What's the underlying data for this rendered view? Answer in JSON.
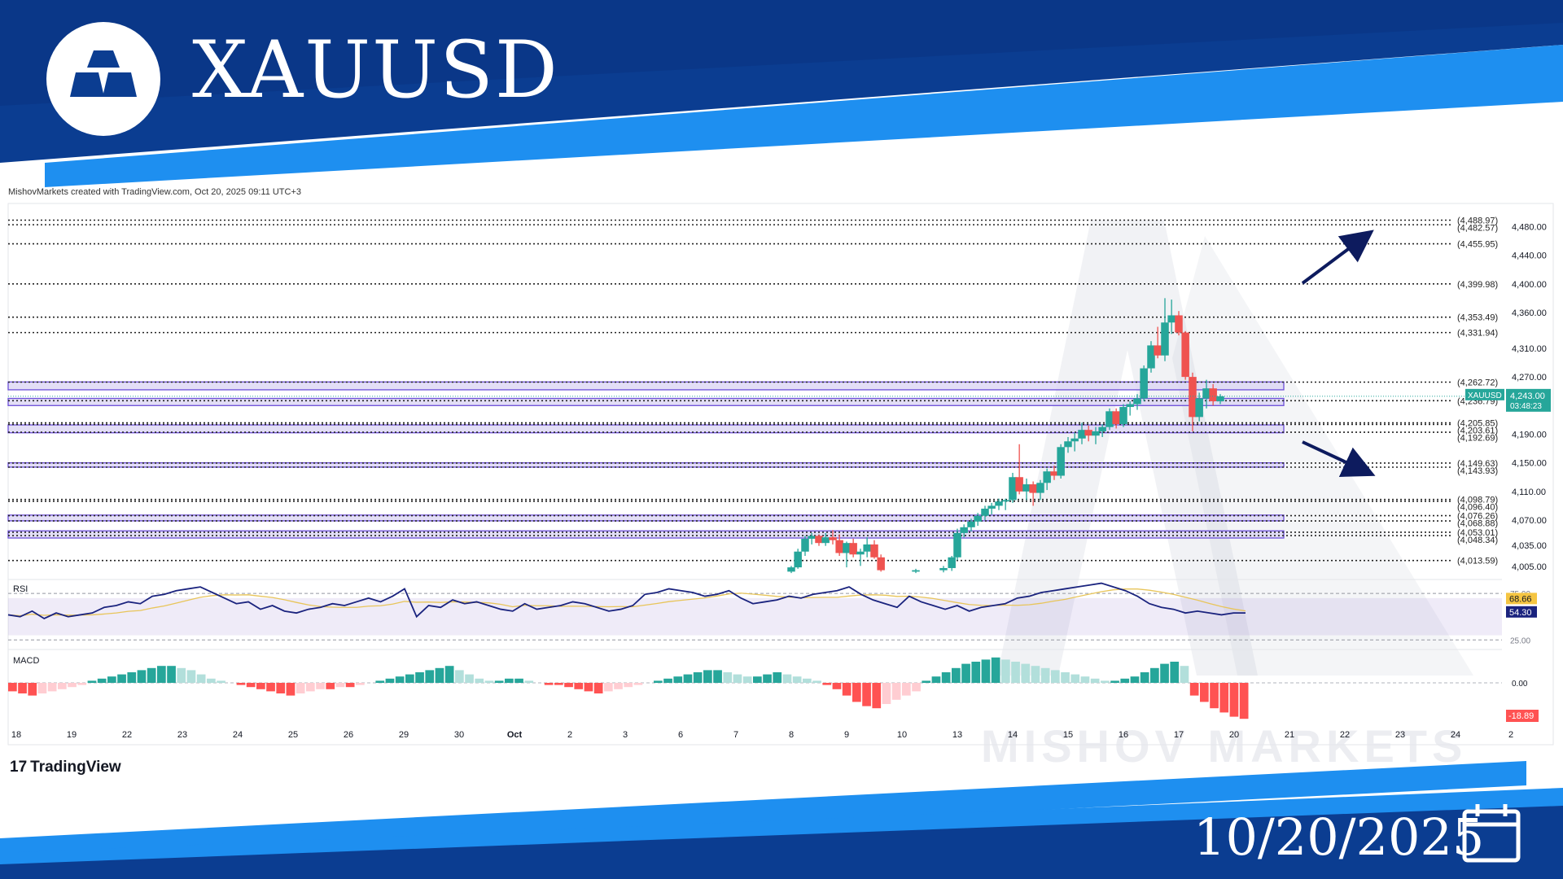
{
  "header": {
    "title": "XAUUSD",
    "date": "10/20/2025"
  },
  "credit": "MishovMarkets created with TradingView.com, Oct 20, 2025 09:11 UTC+3",
  "footer_brand": "TradingView",
  "watermark": "MISHOV MARKETS",
  "colors": {
    "banner_dark": "#0b3d91",
    "banner_light": "#1e8ff0",
    "bull": "#26a69a",
    "bear": "#ef5350",
    "zone_fill": "#d9d3f3",
    "zone_border": "#6c4fd8",
    "rsi_line": "#1a237e",
    "rsi_ma": "#e8c55a",
    "arrow": "#0d1b5e"
  },
  "chart_data": {
    "type": "candlestick",
    "symbol": "XAUUSD",
    "timeframe": "1h",
    "x_ticks": [
      "18",
      "19",
      "22",
      "23",
      "24",
      "25",
      "26",
      "29",
      "30",
      "Oct",
      "2",
      "3",
      "6",
      "7",
      "8",
      "9",
      "10",
      "13",
      "14",
      "15",
      "16",
      "17",
      "20",
      "21",
      "22",
      "23",
      "24",
      "2"
    ],
    "y_ticks": [
      "4,480.00",
      "4,440.00",
      "4,400.00",
      "4,360.00",
      "4,310.00",
      "4,270.00",
      "4,190.00",
      "4,150.00",
      "4,110.00",
      "4,070.00",
      "4,035.00",
      "4,005.00"
    ],
    "ylim": [
      3995,
      4510
    ],
    "current_price": {
      "label": "XAUUSD",
      "price": "4,243.00",
      "countdown": "03:48:23",
      "value": 4243.0
    },
    "levels": [
      {
        "value": 4488.97,
        "label": "(4,488.97)"
      },
      {
        "value": 4482.57,
        "label": "(4,482.57)"
      },
      {
        "value": 4455.95,
        "label": "(4,455.95)"
      },
      {
        "value": 4399.98,
        "label": "(4,399.98)"
      },
      {
        "value": 4353.49,
        "label": "(4,353.49)"
      },
      {
        "value": 4331.94,
        "label": "(4,331.94)"
      },
      {
        "value": 4262.72,
        "label": "(4,262.72)"
      },
      {
        "value": 4236.79,
        "label": "(4,236.79)"
      },
      {
        "value": 4205.85,
        "label": "(4,205.85)"
      },
      {
        "value": 4203.61,
        "label": "(4,203.61)"
      },
      {
        "value": 4192.69,
        "label": "(4,192.69)"
      },
      {
        "value": 4149.63,
        "label": "(4,149.63)"
      },
      {
        "value": 4143.93,
        "label": "(4,143.93)"
      },
      {
        "value": 4098.79,
        "label": "(4,098.79)"
      },
      {
        "value": 4096.4,
        "label": "(4,096.40)"
      },
      {
        "value": 4076.26,
        "label": "(4,076.26)"
      },
      {
        "value": 4068.88,
        "label": "(4,068.88)"
      },
      {
        "value": 4053.01,
        "label": "(4,053.01)"
      },
      {
        "value": 4048.34,
        "label": "(4,048.34)"
      },
      {
        "value": 4013.59,
        "label": "(4,013.59)"
      }
    ],
    "zones": [
      {
        "low": 4252,
        "high": 4263
      },
      {
        "low": 4230,
        "high": 4240
      },
      {
        "low": 4192,
        "high": 4203
      },
      {
        "low": 4144,
        "high": 4150
      },
      {
        "low": 4069,
        "high": 4077
      },
      {
        "low": 4045,
        "high": 4055
      }
    ],
    "candles": [
      {
        "x": 8.0,
        "o": 3998,
        "h": 4006,
        "l": 3996,
        "c": 4004
      },
      {
        "x": 8.12,
        "o": 4004,
        "h": 4030,
        "l": 4002,
        "c": 4026
      },
      {
        "x": 8.25,
        "o": 4026,
        "h": 4048,
        "l": 4020,
        "c": 4044
      },
      {
        "x": 8.37,
        "o": 4044,
        "h": 4052,
        "l": 4036,
        "c": 4048
      },
      {
        "x": 8.5,
        "o": 4048,
        "h": 4050,
        "l": 4034,
        "c": 4038
      },
      {
        "x": 8.62,
        "o": 4038,
        "h": 4052,
        "l": 4034,
        "c": 4046
      },
      {
        "x": 8.75,
        "o": 4046,
        "h": 4056,
        "l": 4036,
        "c": 4042
      },
      {
        "x": 8.87,
        "o": 4042,
        "h": 4050,
        "l": 4020,
        "c": 4024
      },
      {
        "x": 9.0,
        "o": 4024,
        "h": 4040,
        "l": 4004,
        "c": 4038
      },
      {
        "x": 9.12,
        "o": 4038,
        "h": 4044,
        "l": 4018,
        "c": 4022
      },
      {
        "x": 9.25,
        "o": 4022,
        "h": 4030,
        "l": 4006,
        "c": 4026
      },
      {
        "x": 9.37,
        "o": 4026,
        "h": 4046,
        "l": 4018,
        "c": 4036
      },
      {
        "x": 9.5,
        "o": 4036,
        "h": 4042,
        "l": 4016,
        "c": 4018
      },
      {
        "x": 9.62,
        "o": 4018,
        "h": 4022,
        "l": 3998,
        "c": 4000
      },
      {
        "x": 10.25,
        "o": 3998,
        "h": 4002,
        "l": 3996,
        "c": 4000
      },
      {
        "x": 10.75,
        "o": 4000,
        "h": 4006,
        "l": 3997,
        "c": 4003
      },
      {
        "x": 10.9,
        "o": 4003,
        "h": 4020,
        "l": 3999,
        "c": 4018
      },
      {
        "x": 11.0,
        "o": 4018,
        "h": 4058,
        "l": 4014,
        "c": 4052
      },
      {
        "x": 11.12,
        "o": 4052,
        "h": 4064,
        "l": 4046,
        "c": 4060
      },
      {
        "x": 11.25,
        "o": 4060,
        "h": 4072,
        "l": 4054,
        "c": 4068
      },
      {
        "x": 11.37,
        "o": 4068,
        "h": 4080,
        "l": 4062,
        "c": 4076
      },
      {
        "x": 11.5,
        "o": 4076,
        "h": 4090,
        "l": 4070,
        "c": 4086
      },
      {
        "x": 11.62,
        "o": 4086,
        "h": 4094,
        "l": 4078,
        "c": 4090
      },
      {
        "x": 11.75,
        "o": 4090,
        "h": 4100,
        "l": 4084,
        "c": 4096
      },
      {
        "x": 11.87,
        "o": 4096,
        "h": 4100,
        "l": 4084,
        "c": 4098
      },
      {
        "x": 12.0,
        "o": 4098,
        "h": 4136,
        "l": 4094,
        "c": 4130
      },
      {
        "x": 12.12,
        "o": 4130,
        "h": 4176,
        "l": 4106,
        "c": 4110
      },
      {
        "x": 12.25,
        "o": 4110,
        "h": 4128,
        "l": 4098,
        "c": 4120
      },
      {
        "x": 12.37,
        "o": 4120,
        "h": 4124,
        "l": 4090,
        "c": 4108
      },
      {
        "x": 12.5,
        "o": 4108,
        "h": 4126,
        "l": 4098,
        "c": 4122
      },
      {
        "x": 12.62,
        "o": 4122,
        "h": 4142,
        "l": 4112,
        "c": 4138
      },
      {
        "x": 12.75,
        "o": 4138,
        "h": 4146,
        "l": 4126,
        "c": 4132
      },
      {
        "x": 12.87,
        "o": 4132,
        "h": 4176,
        "l": 4128,
        "c": 4172
      },
      {
        "x": 13.0,
        "o": 4172,
        "h": 4186,
        "l": 4164,
        "c": 4180
      },
      {
        "x": 13.12,
        "o": 4180,
        "h": 4192,
        "l": 4166,
        "c": 4184
      },
      {
        "x": 13.25,
        "o": 4184,
        "h": 4206,
        "l": 4176,
        "c": 4196
      },
      {
        "x": 13.37,
        "o": 4196,
        "h": 4202,
        "l": 4180,
        "c": 4188
      },
      {
        "x": 13.5,
        "o": 4188,
        "h": 4200,
        "l": 4176,
        "c": 4194
      },
      {
        "x": 13.62,
        "o": 4194,
        "h": 4204,
        "l": 4186,
        "c": 4200
      },
      {
        "x": 13.75,
        "o": 4200,
        "h": 4226,
        "l": 4196,
        "c": 4222
      },
      {
        "x": 13.87,
        "o": 4222,
        "h": 4226,
        "l": 4198,
        "c": 4204
      },
      {
        "x": 14.0,
        "o": 4204,
        "h": 4232,
        "l": 4200,
        "c": 4228
      },
      {
        "x": 14.12,
        "o": 4228,
        "h": 4236,
        "l": 4216,
        "c": 4232
      },
      {
        "x": 14.25,
        "o": 4232,
        "h": 4246,
        "l": 4224,
        "c": 4240
      },
      {
        "x": 14.37,
        "o": 4240,
        "h": 4286,
        "l": 4236,
        "c": 4282
      },
      {
        "x": 14.5,
        "o": 4282,
        "h": 4320,
        "l": 4276,
        "c": 4314
      },
      {
        "x": 14.62,
        "o": 4314,
        "h": 4340,
        "l": 4296,
        "c": 4300
      },
      {
        "x": 14.75,
        "o": 4300,
        "h": 4380,
        "l": 4292,
        "c": 4346
      },
      {
        "x": 14.87,
        "o": 4346,
        "h": 4378,
        "l": 4330,
        "c": 4356
      },
      {
        "x": 15.0,
        "o": 4356,
        "h": 4362,
        "l": 4328,
        "c": 4332
      },
      {
        "x": 15.12,
        "o": 4332,
        "h": 4334,
        "l": 4266,
        "c": 4270
      },
      {
        "x": 15.25,
        "o": 4270,
        "h": 4276,
        "l": 4194,
        "c": 4214
      },
      {
        "x": 15.37,
        "o": 4214,
        "h": 4248,
        "l": 4208,
        "c": 4240
      },
      {
        "x": 15.5,
        "o": 4240,
        "h": 4266,
        "l": 4226,
        "c": 4254
      },
      {
        "x": 15.62,
        "o": 4254,
        "h": 4260,
        "l": 4230,
        "c": 4236
      },
      {
        "x": 15.75,
        "o": 4236,
        "h": 4246,
        "l": 4232,
        "c": 4243
      }
    ],
    "rsi": {
      "label": "RSI",
      "value": 54.3,
      "value_label": "54.30",
      "ma_value": 68.66,
      "ma_label": "68.66",
      "levels": [
        75,
        25
      ],
      "level_labels": [
        "75.00",
        "25.00"
      ],
      "band": [
        30,
        70
      ],
      "values": [
        52,
        50,
        56,
        48,
        54,
        50,
        52,
        54,
        60,
        62,
        66,
        64,
        72,
        74,
        78,
        80,
        82,
        76,
        70,
        64,
        66,
        58,
        62,
        56,
        54,
        58,
        60,
        64,
        62,
        66,
        70,
        66,
        72,
        80,
        50,
        62,
        60,
        68,
        64,
        66,
        62,
        58,
        56,
        64,
        58,
        60,
        62,
        66,
        64,
        60,
        56,
        58,
        62,
        74,
        76,
        80,
        78,
        76,
        72,
        74,
        78,
        70,
        64,
        66,
        68,
        72,
        70,
        74,
        76,
        78,
        82,
        74,
        68,
        64,
        60,
        72,
        66,
        62,
        58,
        62,
        56,
        60,
        62,
        64,
        70,
        72,
        76,
        78,
        80,
        82,
        84,
        86,
        82,
        78,
        72,
        64,
        60,
        58,
        54,
        56,
        54,
        52,
        54,
        54
      ]
    },
    "macd": {
      "label": "MACD",
      "zero_label": "0.00",
      "value_label": "-18.89",
      "value": -18.89,
      "hist": [
        -4,
        -5,
        -6,
        -5,
        -4,
        -3,
        -2,
        -1,
        1,
        2,
        3,
        4,
        5,
        6,
        7,
        8,
        8,
        7,
        6,
        4,
        2,
        1,
        0,
        -1,
        -2,
        -3,
        -4,
        -5,
        -6,
        -5,
        -4,
        -3,
        -3,
        -2,
        -2,
        -1,
        0,
        1,
        2,
        3,
        4,
        5,
        6,
        7,
        8,
        6,
        4,
        2,
        1,
        1,
        2,
        2,
        1,
        0,
        -1,
        -1,
        -2,
        -3,
        -4,
        -5,
        -4,
        -3,
        -2,
        -1,
        0,
        1,
        2,
        3,
        4,
        5,
        6,
        6,
        5,
        4,
        3,
        3,
        4,
        5,
        4,
        3,
        2,
        1,
        -1,
        -3,
        -6,
        -9,
        -11,
        -12,
        -10,
        -8,
        -6,
        -4,
        1,
        3,
        5,
        7,
        9,
        10,
        11,
        12,
        11,
        10,
        9,
        8,
        7,
        6,
        5,
        4,
        3,
        2,
        1,
        1,
        2,
        3,
        5,
        7,
        9,
        10,
        8,
        -6,
        -9,
        -12,
        -14,
        -16,
        -17
      ]
    }
  }
}
